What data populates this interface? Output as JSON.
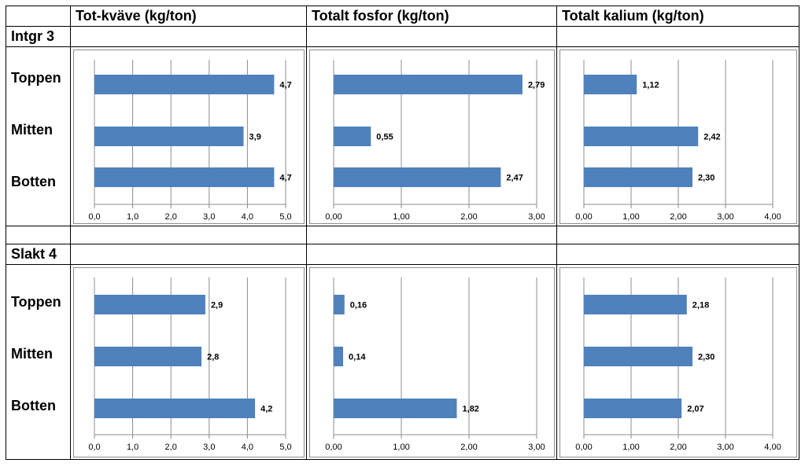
{
  "headers": [
    "Tot-kväve (kg/ton)",
    "Totalt fosfor (kg/ton)",
    "Totalt kalium (kg/ton)"
  ],
  "groups": [
    {
      "name": "Intgr 3",
      "rows": [
        "Toppen",
        "Mitten",
        "Botten"
      ]
    },
    {
      "name": "Slakt 4",
      "rows": [
        "Toppen",
        "Mitten",
        "Botten"
      ]
    }
  ],
  "colors": {
    "bar": "#4f81bd",
    "grid": "#8c8c8c",
    "axis": "#8c8c8c"
  },
  "chart_data": [
    {
      "type": "bar",
      "orientation": "horizontal",
      "group": "Intgr 3",
      "column": "Tot-kväve (kg/ton)",
      "categories": [
        "Toppen",
        "Mitten",
        "Botten"
      ],
      "values": [
        4.7,
        3.9,
        4.7
      ],
      "value_labels": [
        "4,7",
        "3,9",
        "4,7"
      ],
      "xlim": [
        0,
        5
      ],
      "ticks": [
        0,
        1,
        2,
        3,
        4,
        5
      ],
      "tick_labels": [
        "0,0",
        "1,0",
        "2,0",
        "3,0",
        "4,0",
        "5,0"
      ],
      "grid": true
    },
    {
      "type": "bar",
      "orientation": "horizontal",
      "group": "Intgr 3",
      "column": "Totalt fosfor (kg/ton)",
      "categories": [
        "Toppen",
        "Mitten",
        "Botten"
      ],
      "values": [
        2.79,
        0.55,
        2.47
      ],
      "value_labels": [
        "2,79",
        "0,55",
        "2,47"
      ],
      "xlim": [
        0,
        3
      ],
      "ticks": [
        0,
        1,
        2,
        3
      ],
      "tick_labels": [
        "0,00",
        "1,00",
        "2,00",
        "3,00"
      ],
      "grid": true
    },
    {
      "type": "bar",
      "orientation": "horizontal",
      "group": "Intgr 3",
      "column": "Totalt kalium (kg/ton)",
      "categories": [
        "Toppen",
        "Mitten",
        "Botten"
      ],
      "values": [
        1.12,
        2.42,
        2.3
      ],
      "value_labels": [
        "1,12",
        "2,42",
        "2,30"
      ],
      "xlim": [
        0,
        4
      ],
      "ticks": [
        0,
        1,
        2,
        3,
        4
      ],
      "tick_labels": [
        "0,00",
        "1,00",
        "2,00",
        "3,00",
        "4,00"
      ],
      "grid": true
    },
    {
      "type": "bar",
      "orientation": "horizontal",
      "group": "Slakt 4",
      "column": "Tot-kväve (kg/ton)",
      "categories": [
        "Toppen",
        "Mitten",
        "Botten"
      ],
      "values": [
        2.9,
        2.8,
        4.2
      ],
      "value_labels": [
        "2,9",
        "2,8",
        "4,2"
      ],
      "xlim": [
        0,
        5
      ],
      "ticks": [
        0,
        1,
        2,
        3,
        4,
        5
      ],
      "tick_labels": [
        "0,0",
        "1,0",
        "2,0",
        "3,0",
        "4,0",
        "5,0"
      ],
      "grid": true
    },
    {
      "type": "bar",
      "orientation": "horizontal",
      "group": "Slakt 4",
      "column": "Totalt fosfor (kg/ton)",
      "categories": [
        "Toppen",
        "Mitten",
        "Botten"
      ],
      "values": [
        0.16,
        0.14,
        1.82
      ],
      "value_labels": [
        "0,16",
        "0,14",
        "1,82"
      ],
      "xlim": [
        0,
        3
      ],
      "ticks": [
        0,
        1,
        2,
        3
      ],
      "tick_labels": [
        "0,00",
        "1,00",
        "2,00",
        "3,00"
      ],
      "grid": true
    },
    {
      "type": "bar",
      "orientation": "horizontal",
      "group": "Slakt 4",
      "column": "Totalt kalium (kg/ton)",
      "categories": [
        "Toppen",
        "Mitten",
        "Botten"
      ],
      "values": [
        2.18,
        2.3,
        2.07
      ],
      "value_labels": [
        "2,18",
        "2,30",
        "2,07"
      ],
      "xlim": [
        0,
        4
      ],
      "ticks": [
        0,
        1,
        2,
        3,
        4
      ],
      "tick_labels": [
        "0,00",
        "1,00",
        "2,00",
        "3,00",
        "4,00"
      ],
      "grid": true
    }
  ]
}
